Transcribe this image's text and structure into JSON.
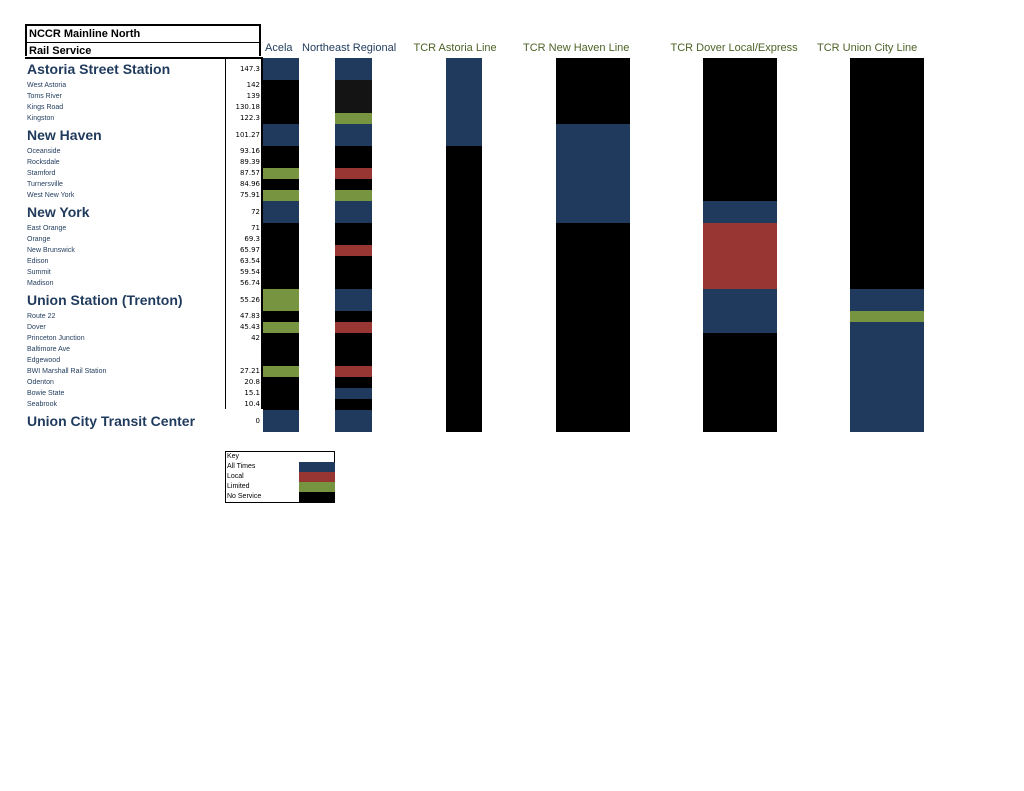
{
  "title": {
    "line1": "NCCR Mainline North",
    "line2": "Rail Service"
  },
  "colors": {
    "all_times": "#1f3a5c",
    "local": "#983634",
    "limited": "#779540",
    "none": "#000000",
    "alt_none": "#141414"
  },
  "stations": [
    {
      "name": "Astoria Street Station",
      "dist": "147.3",
      "major": true
    },
    {
      "name": "West Astoria",
      "dist": "142"
    },
    {
      "name": "Toms River",
      "dist": "139"
    },
    {
      "name": "Kings Road",
      "dist": "130.18"
    },
    {
      "name": "Kingston",
      "dist": "122.3"
    },
    {
      "name": "New Haven",
      "dist": "101.27",
      "major": true
    },
    {
      "name": "Oceanside",
      "dist": "93.16"
    },
    {
      "name": "Rocksdale",
      "dist": "89.39"
    },
    {
      "name": "Stamford",
      "dist": "87.57"
    },
    {
      "name": "Turnersville",
      "dist": "84.96"
    },
    {
      "name": "West New York",
      "dist": "75.91"
    },
    {
      "name": "New York",
      "dist": "72",
      "major": true
    },
    {
      "name": "East Orange",
      "dist": "71"
    },
    {
      "name": "Orange",
      "dist": "69.3"
    },
    {
      "name": "New Brunswick",
      "dist": "65.97"
    },
    {
      "name": "Edison",
      "dist": "63.54"
    },
    {
      "name": "Summit",
      "dist": "59.54"
    },
    {
      "name": "Madison",
      "dist": "56.74"
    },
    {
      "name": "Union Station (Trenton)",
      "dist": "55.26",
      "major": true
    },
    {
      "name": "Route 22",
      "dist": "47.83"
    },
    {
      "name": "Dover",
      "dist": "45.43"
    },
    {
      "name": "Princeton Junction",
      "dist": "42"
    },
    {
      "name": "Baltimore Ave",
      "dist": ""
    },
    {
      "name": "Edgewood",
      "dist": ""
    },
    {
      "name": "BWI Marshall Rail Station",
      "dist": "27.21"
    },
    {
      "name": "Odenton",
      "dist": "20.8"
    },
    {
      "name": "Bowie State",
      "dist": "15.1"
    },
    {
      "name": "Seabrook",
      "dist": "10.4"
    },
    {
      "name": "Union City Transit Center",
      "dist": "0",
      "major": true
    }
  ],
  "services": [
    {
      "name": "Acela",
      "header_color": "#1f3a5c",
      "service": [
        "A",
        "N",
        "N",
        "N",
        "N",
        "A",
        "N",
        "N",
        "L",
        "N",
        "L",
        "A",
        "N",
        "N",
        "N",
        "N",
        "N",
        "N",
        "L",
        "N",
        "L",
        "N",
        "N",
        "N",
        "L",
        "N",
        "N",
        "N",
        "A"
      ]
    },
    {
      "name": "Northeast Regional",
      "header_color": "#1f3a5c",
      "service": [
        "A",
        "X",
        "X",
        "X",
        "L",
        "A",
        "N",
        "N",
        "R",
        "N",
        "L",
        "A",
        "N",
        "N",
        "R",
        "N",
        "N",
        "N",
        "A",
        "N",
        "R",
        "N",
        "N",
        "N",
        "R",
        "N",
        "A",
        "N",
        "A"
      ]
    },
    {
      "name": "TCR Astoria Line",
      "header_color": "#4f6228",
      "service": [
        "A",
        "A",
        "A",
        "A",
        "A",
        "A",
        "N",
        "N",
        "N",
        "N",
        "N",
        "N",
        "N",
        "N",
        "N",
        "N",
        "N",
        "N",
        "N",
        "N",
        "N",
        "N",
        "N",
        "N",
        "N",
        "N",
        "N",
        "N",
        "N"
      ]
    },
    {
      "name": "TCR New Haven Line",
      "header_color": "#4f6228",
      "service": [
        "N",
        "N",
        "N",
        "N",
        "N",
        "A",
        "A",
        "A",
        "A",
        "A",
        "A",
        "A",
        "N",
        "N",
        "N",
        "N",
        "N",
        "N",
        "N",
        "N",
        "N",
        "N",
        "N",
        "N",
        "N",
        "N",
        "N",
        "N",
        "N"
      ]
    },
    {
      "name": "TCR Dover Local/Express",
      "header_color": "#4f6228",
      "service": [
        "N",
        "N",
        "N",
        "N",
        "N",
        "N",
        "N",
        "N",
        "N",
        "N",
        "N",
        "A",
        "R",
        "R",
        "R",
        "R",
        "R",
        "R",
        "A",
        "A",
        "A",
        "N",
        "N",
        "N",
        "N",
        "N",
        "N",
        "N",
        "N"
      ]
    },
    {
      "name": "TCR Union City Line",
      "header_color": "#4f6228",
      "service": [
        "N",
        "N",
        "N",
        "N",
        "N",
        "N",
        "N",
        "N",
        "N",
        "N",
        "N",
        "N",
        "N",
        "N",
        "N",
        "N",
        "N",
        "N",
        "A",
        "L",
        "A",
        "A",
        "A",
        "A",
        "A",
        "A",
        "A",
        "A",
        "A"
      ]
    }
  ],
  "key": {
    "title": "Key",
    "items": [
      {
        "label": "All Times",
        "code": "A"
      },
      {
        "label": "Local",
        "code": "R"
      },
      {
        "label": "Limited",
        "code": "L"
      },
      {
        "label": "No Service",
        "code": "N"
      }
    ]
  }
}
